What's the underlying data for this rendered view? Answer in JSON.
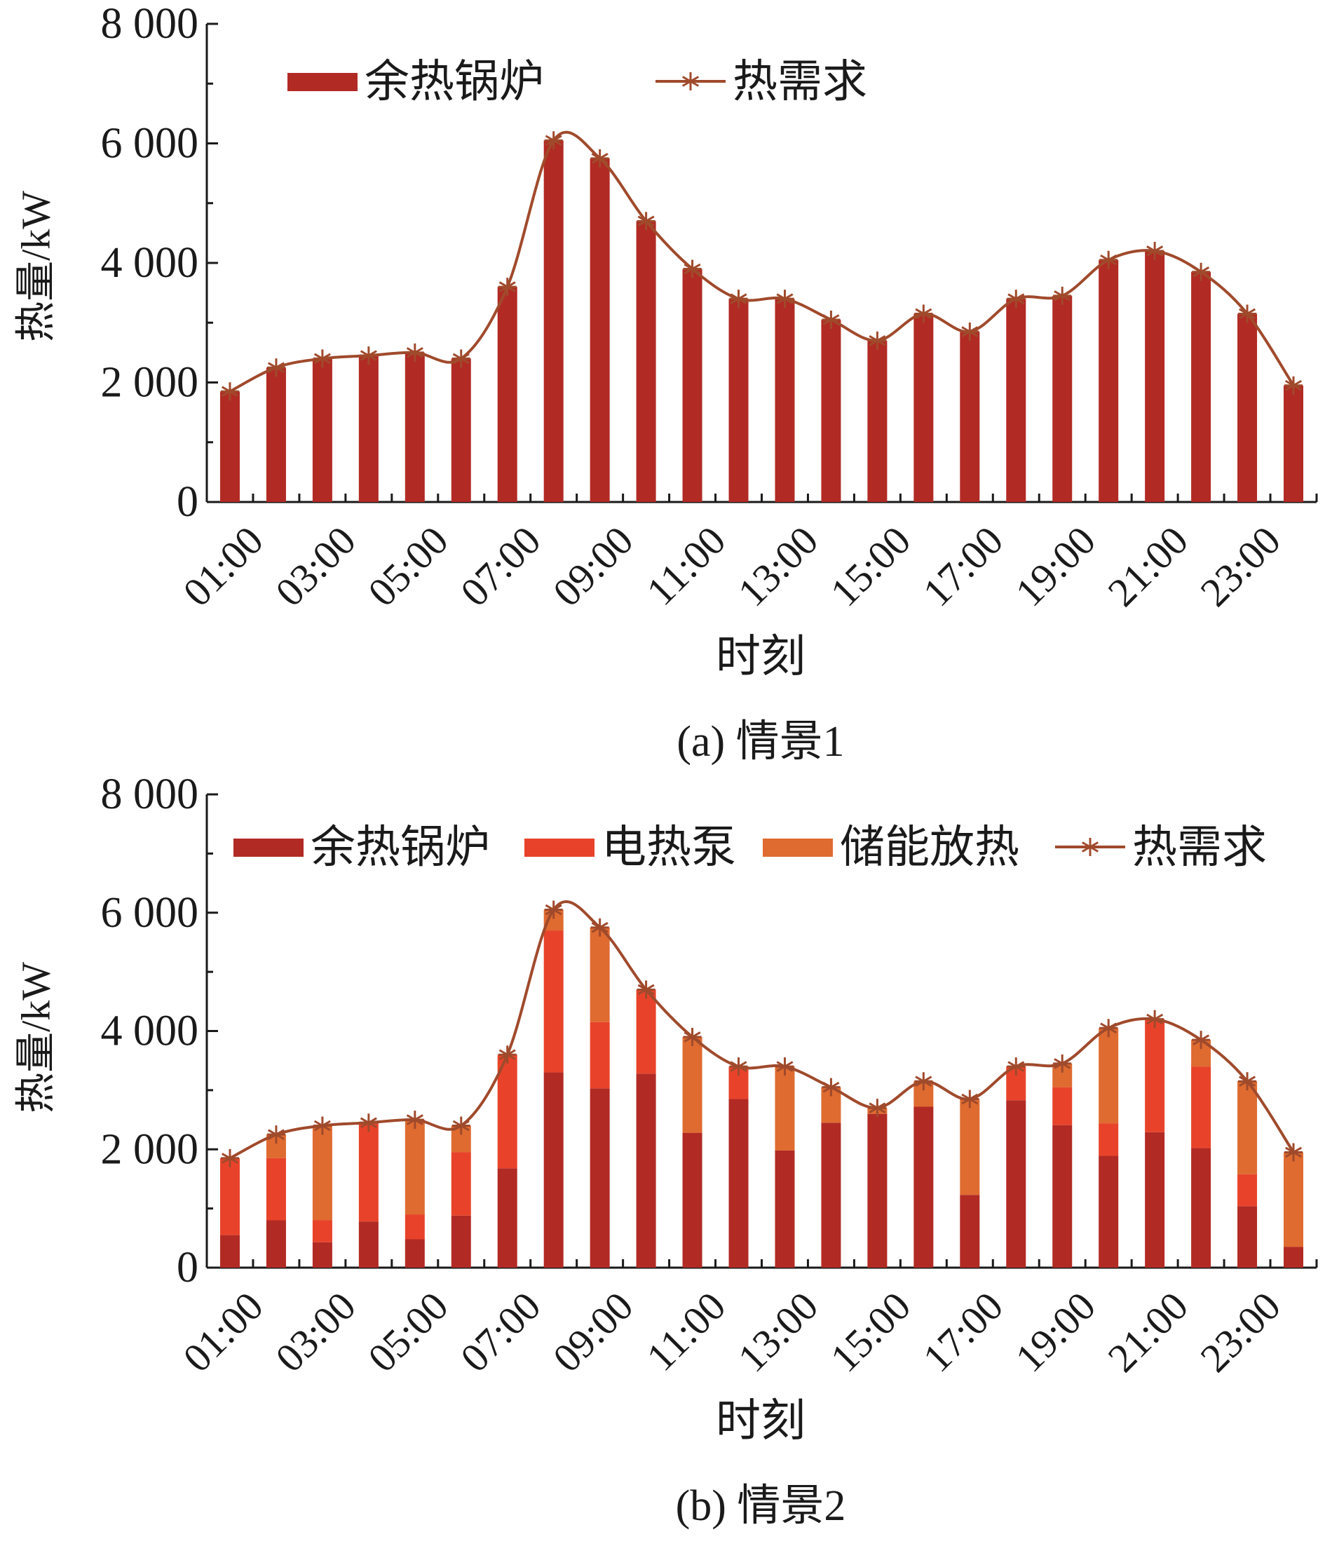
{
  "colors": {
    "boiler": "#B22A24",
    "heat_pump": "#E8432A",
    "storage": "#DF6B30",
    "demand": "#A04A2C",
    "axis": "#1a1a1a"
  },
  "chart_data": [
    {
      "type": "bar",
      "caption": "(a) 情景1",
      "xlabel": "时刻",
      "ylabel": "热量/kW",
      "ylim": [
        0,
        8000
      ],
      "yticks": [
        0,
        2000,
        4000,
        6000,
        8000
      ],
      "ytick_labels": [
        "0",
        "2 000",
        "4 000",
        "6 000",
        "8 000"
      ],
      "categories": [
        "01:00",
        "02:00",
        "03:00",
        "04:00",
        "05:00",
        "06:00",
        "07:00",
        "08:00",
        "09:00",
        "10:00",
        "11:00",
        "12:00",
        "13:00",
        "14:00",
        "15:00",
        "16:00",
        "17:00",
        "18:00",
        "19:00",
        "20:00",
        "21:00",
        "22:00",
        "23:00",
        "24:00"
      ],
      "xtick_labels": [
        "01:00",
        "03:00",
        "05:00",
        "07:00",
        "09:00",
        "11:00",
        "13:00",
        "15:00",
        "17:00",
        "19:00",
        "21:00",
        "23:00"
      ],
      "legend_position": "top-left",
      "series": [
        {
          "name": "余热锅炉",
          "kind": "bar",
          "color_key": "boiler",
          "values": [
            1850,
            2250,
            2400,
            2450,
            2500,
            2400,
            3600,
            6050,
            5750,
            4700,
            3900,
            3400,
            3400,
            3050,
            2700,
            3150,
            2850,
            3400,
            3450,
            4050,
            4200,
            3850,
            3150,
            1950
          ]
        },
        {
          "name": "热需求",
          "kind": "line",
          "color_key": "demand",
          "values": [
            1850,
            2250,
            2400,
            2450,
            2500,
            2400,
            3600,
            6050,
            5750,
            4700,
            3900,
            3400,
            3400,
            3050,
            2700,
            3150,
            2850,
            3400,
            3450,
            4050,
            4200,
            3850,
            3150,
            1950
          ]
        }
      ]
    },
    {
      "type": "bar",
      "caption": "(b) 情景2",
      "xlabel": "时刻",
      "ylabel": "热量/kW",
      "ylim": [
        0,
        8000
      ],
      "yticks": [
        0,
        2000,
        4000,
        6000,
        8000
      ],
      "ytick_labels": [
        "0",
        "2 000",
        "4 000",
        "6 000",
        "8 000"
      ],
      "categories": [
        "01:00",
        "02:00",
        "03:00",
        "04:00",
        "05:00",
        "06:00",
        "07:00",
        "08:00",
        "09:00",
        "10:00",
        "11:00",
        "12:00",
        "13:00",
        "14:00",
        "15:00",
        "16:00",
        "17:00",
        "18:00",
        "19:00",
        "20:00",
        "21:00",
        "22:00",
        "23:00",
        "24:00"
      ],
      "xtick_labels": [
        "01:00",
        "03:00",
        "05:00",
        "07:00",
        "09:00",
        "11:00",
        "13:00",
        "15:00",
        "17:00",
        "19:00",
        "21:00",
        "23:00"
      ],
      "stacked": true,
      "legend_position": "top",
      "series": [
        {
          "name": "余热锅炉",
          "kind": "bar",
          "color_key": "boiler",
          "values": [
            550,
            800,
            430,
            780,
            480,
            880,
            1680,
            3300,
            3030,
            3280,
            2280,
            2850,
            1980,
            2450,
            2600,
            2720,
            1230,
            2830,
            2410,
            1890,
            2290,
            2020,
            1040,
            350
          ]
        },
        {
          "name": "电热泵",
          "kind": "bar",
          "color_key": "heat_pump",
          "values": [
            1300,
            1050,
            370,
            1670,
            420,
            1070,
            1920,
            2400,
            1120,
            1420,
            0,
            550,
            0,
            0,
            0,
            0,
            0,
            570,
            640,
            550,
            1910,
            1380,
            540,
            0
          ]
        },
        {
          "name": "储能放热",
          "kind": "bar",
          "color_key": "storage",
          "values": [
            0,
            400,
            1600,
            0,
            1600,
            450,
            0,
            350,
            1600,
            0,
            1620,
            0,
            1420,
            600,
            100,
            430,
            1620,
            0,
            400,
            1610,
            0,
            450,
            1570,
            1600
          ]
        },
        {
          "name": "热需求",
          "kind": "line",
          "color_key": "demand",
          "values": [
            1850,
            2250,
            2400,
            2450,
            2500,
            2400,
            3600,
            6050,
            5750,
            4700,
            3900,
            3400,
            3400,
            3050,
            2700,
            3150,
            2850,
            3400,
            3450,
            4050,
            4200,
            3850,
            3150,
            1950
          ]
        }
      ]
    }
  ]
}
